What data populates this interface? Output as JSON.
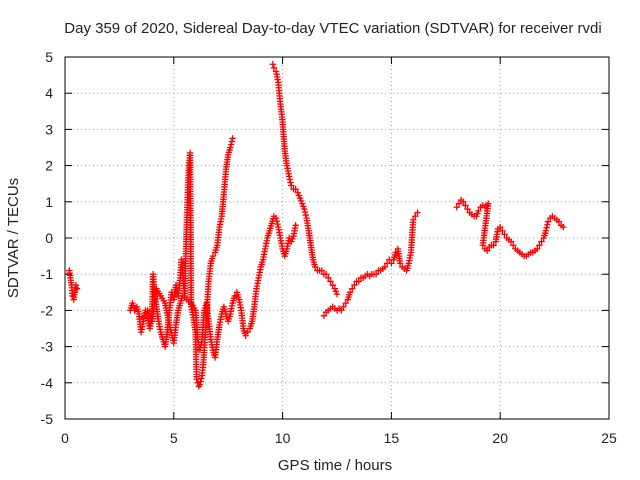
{
  "chart_data": {
    "type": "scatter",
    "title": "Day 359 of 2020, Sidereal Day-to-day VTEC variation (SDTVAR) for receiver rvdi",
    "xlabel": "GPS time / hours",
    "ylabel": "SDTVAR / TECUs",
    "xlim": [
      0,
      25
    ],
    "ylim": [
      -5,
      5
    ],
    "x_ticks": [
      0,
      5,
      10,
      15,
      20,
      25
    ],
    "y_ticks": [
      -5,
      -4,
      -3,
      -2,
      -1,
      0,
      1,
      2,
      3,
      4,
      5
    ],
    "grid": true,
    "legend": "none",
    "marker": "plus",
    "color": "#ff0000",
    "segments": [
      [
        [
          0.2,
          -0.9
        ],
        [
          0.25,
          -1.1
        ],
        [
          0.3,
          -1.3
        ],
        [
          0.35,
          -1.6
        ],
        [
          0.4,
          -1.7
        ],
        [
          0.45,
          -1.5
        ],
        [
          0.5,
          -1.3
        ],
        [
          0.55,
          -1.4
        ]
      ],
      [
        [
          3.0,
          -2.0
        ],
        [
          3.1,
          -1.8
        ],
        [
          3.2,
          -2.0
        ],
        [
          3.3,
          -1.9
        ],
        [
          3.4,
          -2.1
        ],
        [
          3.5,
          -2.6
        ],
        [
          3.6,
          -2.3
        ],
        [
          3.7,
          -2.0
        ],
        [
          3.8,
          -2.2
        ],
        [
          3.9,
          -2.5
        ],
        [
          4.0,
          -2.1
        ],
        [
          4.05,
          -1.0
        ],
        [
          4.1,
          -1.5
        ],
        [
          4.2,
          -1.9
        ],
        [
          4.3,
          -2.3
        ],
        [
          4.4,
          -2.6
        ],
        [
          4.5,
          -2.8
        ],
        [
          4.6,
          -3.0
        ],
        [
          4.7,
          -2.6
        ],
        [
          4.8,
          -2.0
        ],
        [
          4.9,
          -1.5
        ],
        [
          5.0,
          -1.7
        ],
        [
          5.1,
          -1.3
        ],
        [
          5.2,
          -1.6
        ],
        [
          5.3,
          -1.1
        ],
        [
          5.35,
          -0.6
        ],
        [
          5.4,
          -0.9
        ],
        [
          5.5,
          -1.6
        ],
        [
          5.55,
          -0.5
        ],
        [
          5.6,
          0.5
        ],
        [
          5.65,
          1.4
        ],
        [
          5.7,
          2.0
        ],
        [
          5.75,
          2.35
        ],
        [
          5.8,
          -1.9
        ],
        [
          5.9,
          -2.2
        ],
        [
          6.0,
          -2.6
        ],
        [
          6.05,
          -3.9
        ],
        [
          6.1,
          -4.0
        ],
        [
          6.15,
          -4.1
        ],
        [
          6.2,
          -4.05
        ],
        [
          6.3,
          -3.8
        ],
        [
          6.35,
          -3.5
        ],
        [
          6.4,
          -3.1
        ],
        [
          6.45,
          -2.6
        ],
        [
          6.5,
          -2.2
        ],
        [
          6.55,
          -1.7
        ],
        [
          6.6,
          -1.2
        ],
        [
          6.7,
          -0.7
        ],
        [
          6.8,
          -0.5
        ],
        [
          6.9,
          -0.4
        ],
        [
          7.0,
          -0.2
        ],
        [
          7.1,
          0.3
        ],
        [
          7.2,
          0.6
        ],
        [
          7.3,
          1.2
        ],
        [
          7.4,
          1.9
        ],
        [
          7.5,
          2.3
        ],
        [
          7.6,
          2.5
        ],
        [
          7.7,
          2.75
        ]
      ],
      [
        [
          3.6,
          -2.2
        ],
        [
          3.8,
          -2.0
        ],
        [
          4.0,
          -2.3
        ],
        [
          4.2,
          -1.4
        ],
        [
          4.4,
          -1.6
        ],
        [
          4.6,
          -1.8
        ],
        [
          4.8,
          -2.4
        ],
        [
          5.0,
          -2.9
        ],
        [
          5.1,
          -2.4
        ],
        [
          5.2,
          -2.0
        ],
        [
          5.4,
          -1.6
        ],
        [
          5.6,
          -1.7
        ],
        [
          5.8,
          -1.8
        ],
        [
          6.0,
          -2.0
        ],
        [
          6.1,
          -2.8
        ],
        [
          6.2,
          -3.1
        ],
        [
          6.3,
          -2.8
        ],
        [
          6.4,
          -2.0
        ],
        [
          6.5,
          -1.8
        ],
        [
          6.6,
          -2.3
        ],
        [
          6.7,
          -2.8
        ],
        [
          6.8,
          -3.1
        ],
        [
          6.9,
          -3.3
        ],
        [
          7.0,
          -2.8
        ],
        [
          7.1,
          -2.4
        ],
        [
          7.2,
          -2.1
        ],
        [
          7.3,
          -1.9
        ],
        [
          7.4,
          -2.1
        ],
        [
          7.5,
          -2.3
        ],
        [
          7.6,
          -2.1
        ],
        [
          7.7,
          -1.8
        ],
        [
          7.8,
          -1.6
        ],
        [
          7.9,
          -1.5
        ],
        [
          8.0,
          -1.7
        ],
        [
          8.1,
          -2.0
        ],
        [
          8.2,
          -2.5
        ],
        [
          8.3,
          -2.7
        ],
        [
          8.4,
          -2.6
        ],
        [
          8.5,
          -2.5
        ],
        [
          8.6,
          -2.3
        ],
        [
          8.7,
          -1.9
        ],
        [
          8.8,
          -1.4
        ],
        [
          8.9,
          -1.1
        ],
        [
          9.0,
          -0.8
        ],
        [
          9.1,
          -0.6
        ],
        [
          9.2,
          -0.3
        ],
        [
          9.3,
          0.0
        ],
        [
          9.4,
          0.2
        ],
        [
          9.5,
          0.4
        ],
        [
          9.6,
          0.6
        ],
        [
          9.7,
          0.55
        ],
        [
          9.8,
          0.3
        ],
        [
          9.9,
          0.0
        ],
        [
          10.0,
          -0.3
        ],
        [
          10.1,
          -0.5
        ],
        [
          10.2,
          -0.3
        ],
        [
          10.3,
          0.0
        ],
        [
          10.4,
          -0.1
        ],
        [
          10.5,
          0.05
        ],
        [
          10.6,
          0.35
        ]
      ],
      [
        [
          9.55,
          4.8
        ],
        [
          9.6,
          4.7
        ],
        [
          9.7,
          4.6
        ],
        [
          9.8,
          4.3
        ],
        [
          9.85,
          4.0
        ],
        [
          9.9,
          3.7
        ],
        [
          10.0,
          3.2
        ],
        [
          10.05,
          2.8
        ],
        [
          10.1,
          2.4
        ],
        [
          10.2,
          2.0
        ],
        [
          10.3,
          1.7
        ],
        [
          10.4,
          1.45
        ],
        [
          10.5,
          1.35
        ],
        [
          10.6,
          1.35
        ],
        [
          10.7,
          1.25
        ],
        [
          10.8,
          1.1
        ],
        [
          10.9,
          0.95
        ],
        [
          11.0,
          0.8
        ],
        [
          11.1,
          0.55
        ],
        [
          11.2,
          0.2
        ],
        [
          11.3,
          -0.2
        ],
        [
          11.4,
          -0.6
        ],
        [
          11.5,
          -0.8
        ],
        [
          11.6,
          -0.9
        ],
        [
          11.7,
          -0.9
        ],
        [
          11.8,
          -0.9
        ],
        [
          11.9,
          -1.0
        ],
        [
          12.0,
          -1.0
        ],
        [
          12.1,
          -1.1
        ],
        [
          12.2,
          -1.2
        ],
        [
          12.3,
          -1.3
        ],
        [
          12.4,
          -1.4
        ],
        [
          12.5,
          -1.55
        ]
      ],
      [
        [
          11.9,
          -2.15
        ],
        [
          12.0,
          -2.05
        ],
        [
          12.1,
          -2.0
        ],
        [
          12.2,
          -1.95
        ],
        [
          12.3,
          -1.9
        ],
        [
          12.4,
          -1.95
        ],
        [
          12.5,
          -2.0
        ],
        [
          12.6,
          -1.95
        ],
        [
          12.7,
          -2.0
        ],
        [
          12.8,
          -1.9
        ],
        [
          12.9,
          -1.8
        ],
        [
          13.0,
          -1.7
        ],
        [
          13.1,
          -1.5
        ],
        [
          13.2,
          -1.4
        ],
        [
          13.3,
          -1.3
        ],
        [
          13.4,
          -1.2
        ],
        [
          13.5,
          -1.2
        ],
        [
          13.6,
          -1.1
        ],
        [
          13.7,
          -1.1
        ],
        [
          13.8,
          -1.05
        ],
        [
          13.9,
          -1.0
        ],
        [
          14.0,
          -1.05
        ],
        [
          14.1,
          -1.0
        ],
        [
          14.2,
          -1.0
        ],
        [
          14.3,
          -1.0
        ],
        [
          14.4,
          -0.9
        ],
        [
          14.5,
          -0.9
        ],
        [
          14.6,
          -0.85
        ],
        [
          14.7,
          -0.8
        ],
        [
          14.8,
          -0.7
        ],
        [
          14.9,
          -0.6
        ],
        [
          15.0,
          -0.7
        ],
        [
          15.1,
          -0.6
        ],
        [
          15.2,
          -0.4
        ],
        [
          15.3,
          -0.3
        ],
        [
          15.35,
          -0.5
        ],
        [
          15.4,
          -0.7
        ],
        [
          15.5,
          -0.8
        ],
        [
          15.6,
          -0.85
        ],
        [
          15.7,
          -0.9
        ],
        [
          15.8,
          -0.7
        ],
        [
          15.9,
          -0.4
        ],
        [
          16.0,
          0.5
        ],
        [
          16.1,
          0.6
        ],
        [
          16.2,
          0.7
        ]
      ],
      [
        [
          18.0,
          0.85
        ],
        [
          18.1,
          0.95
        ],
        [
          18.2,
          1.05
        ],
        [
          18.3,
          1.0
        ],
        [
          18.4,
          0.9
        ],
        [
          18.5,
          0.8
        ],
        [
          18.6,
          0.7
        ],
        [
          18.7,
          0.65
        ],
        [
          18.8,
          0.6
        ],
        [
          18.9,
          0.6
        ],
        [
          19.0,
          0.75
        ],
        [
          19.1,
          0.85
        ],
        [
          19.2,
          0.9
        ],
        [
          19.3,
          0.85
        ],
        [
          19.4,
          0.9
        ],
        [
          19.45,
          0.95
        ],
        [
          19.2,
          -0.2
        ],
        [
          19.3,
          -0.3
        ],
        [
          19.4,
          -0.35
        ],
        [
          19.5,
          -0.25
        ],
        [
          19.6,
          -0.2
        ],
        [
          19.7,
          -0.2
        ],
        [
          19.8,
          -0.1
        ],
        [
          19.85,
          0.1
        ],
        [
          19.9,
          0.25
        ],
        [
          20.0,
          0.3
        ],
        [
          20.1,
          0.2
        ],
        [
          20.2,
          0.1
        ],
        [
          20.3,
          0.0
        ],
        [
          20.4,
          -0.05
        ],
        [
          20.5,
          -0.1
        ],
        [
          20.6,
          -0.2
        ],
        [
          20.7,
          -0.3
        ],
        [
          20.8,
          -0.35
        ],
        [
          20.9,
          -0.4
        ],
        [
          21.0,
          -0.45
        ],
        [
          21.1,
          -0.5
        ],
        [
          21.2,
          -0.5
        ],
        [
          21.3,
          -0.45
        ],
        [
          21.4,
          -0.4
        ],
        [
          21.5,
          -0.4
        ],
        [
          21.6,
          -0.35
        ],
        [
          21.7,
          -0.3
        ],
        [
          21.8,
          -0.2
        ],
        [
          21.9,
          -0.1
        ],
        [
          22.0,
          0.0
        ],
        [
          22.1,
          0.2
        ],
        [
          22.2,
          0.45
        ],
        [
          22.3,
          0.55
        ],
        [
          22.4,
          0.6
        ],
        [
          22.5,
          0.55
        ],
        [
          22.6,
          0.5
        ],
        [
          22.7,
          0.45
        ],
        [
          22.8,
          0.35
        ],
        [
          22.9,
          0.3
        ]
      ]
    ]
  }
}
